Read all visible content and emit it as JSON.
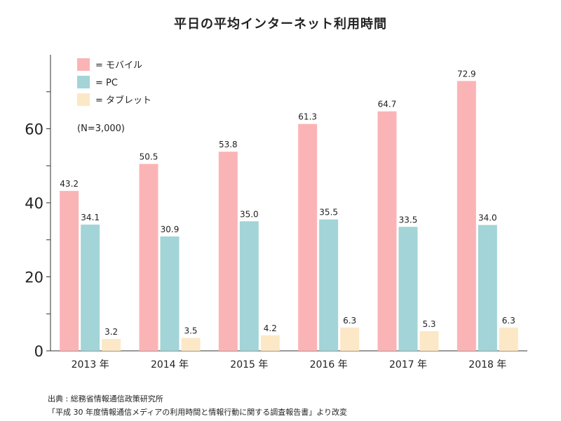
{
  "chart_data": {
    "type": "bar",
    "title": "平日の平均インターネット利用時間",
    "categories": [
      "2013 年",
      "2014 年",
      "2015 年",
      "2016 年",
      "2017 年",
      "2018 年"
    ],
    "series": [
      {
        "name": "モバイル",
        "legend_label": "= モバイル",
        "color": "#fbb4b6",
        "values": [
          43.2,
          50.5,
          53.8,
          61.3,
          64.7,
          72.9
        ],
        "labels": [
          "43.2",
          "50.5",
          "53.8",
          "61.3",
          "64.7",
          "72.9"
        ]
      },
      {
        "name": "PC",
        "legend_label": "= PC",
        "color": "#a3d4d7",
        "values": [
          34.1,
          30.9,
          35.0,
          35.5,
          33.5,
          34.0
        ],
        "labels": [
          "34.1",
          "30.9",
          "35.0",
          "35.5",
          "33.5",
          "34.0"
        ]
      },
      {
        "name": "タブレット",
        "legend_label": "= タブレット",
        "color": "#fce8c6",
        "values": [
          3.2,
          3.5,
          4.2,
          6.3,
          5.3,
          6.3
        ],
        "labels": [
          "3.2",
          "3.5",
          "4.2",
          "6.3",
          "5.3",
          "6.3"
        ]
      }
    ],
    "yticks": [
      0,
      20,
      40,
      60
    ],
    "ytick_labels": [
      "0",
      "20",
      "40",
      "60"
    ],
    "ylim": [
      0,
      80
    ],
    "note": "(N=3,000)",
    "legend_position": "top-left",
    "xlabel": "",
    "ylabel": ""
  },
  "source": {
    "line1": "出典 : 総務省情報通信政策研究所",
    "line2": "「平成 30 年度情報通信メディアの利用時間と情報行動に関する調査報告書」より改変"
  }
}
